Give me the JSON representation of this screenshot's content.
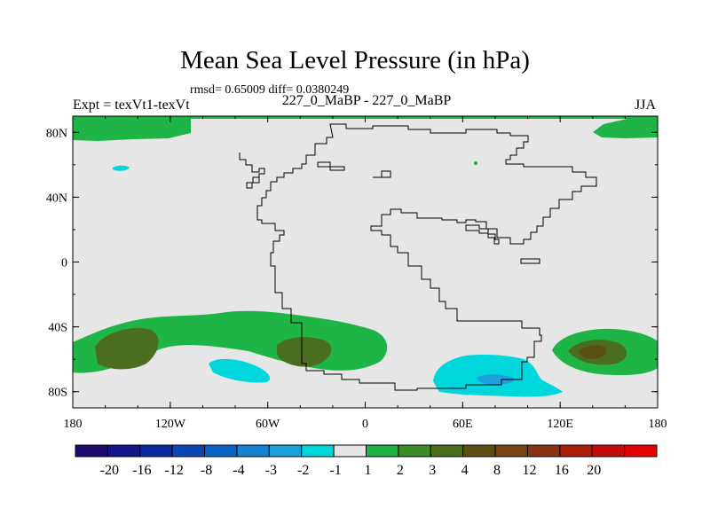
{
  "chart_data": {
    "type": "filled-contour-map",
    "title": "Mean Sea Level Pressure (in hPa)",
    "stats": "rmsd= 0.65009 diff= 0.0380249",
    "left_label": "Expt = texVt1-texVt",
    "center_label": "227_0_MaBP - 227_0_MaBP",
    "right_label": "JJA",
    "xlim": [
      -180,
      180
    ],
    "ylim": [
      -90,
      90
    ],
    "x_ticks": [
      {
        "value": -180,
        "label": "180"
      },
      {
        "value": -120,
        "label": "120W"
      },
      {
        "value": -60,
        "label": "60W"
      },
      {
        "value": 0,
        "label": "0"
      },
      {
        "value": 60,
        "label": "60E"
      },
      {
        "value": 120,
        "label": "120E"
      },
      {
        "value": 180,
        "label": "180"
      }
    ],
    "y_ticks": [
      {
        "value": 80,
        "label": "80N"
      },
      {
        "value": 40,
        "label": "40N"
      },
      {
        "value": 0,
        "label": "0"
      },
      {
        "value": -40,
        "label": "40S"
      },
      {
        "value": -80,
        "label": "80S"
      }
    ],
    "colorbar": {
      "colors": [
        "#1e0a6e",
        "#14148c",
        "#0a28a0",
        "#0a46b4",
        "#0a64c8",
        "#1482d2",
        "#1ea0dc",
        "#00d7dc",
        "#e6e6e6",
        "#1eb446",
        "#3c8c28",
        "#4b6e1e",
        "#5a5014",
        "#784614",
        "#8c3214",
        "#aa1e0a",
        "#c80a0a",
        "#e60000"
      ],
      "labels": [
        "-20",
        "-16",
        "-12",
        "-8",
        "-4",
        "-3",
        "-2",
        "-1",
        "1",
        "2",
        "3",
        "4",
        "8",
        "12",
        "16",
        "20"
      ]
    }
  }
}
